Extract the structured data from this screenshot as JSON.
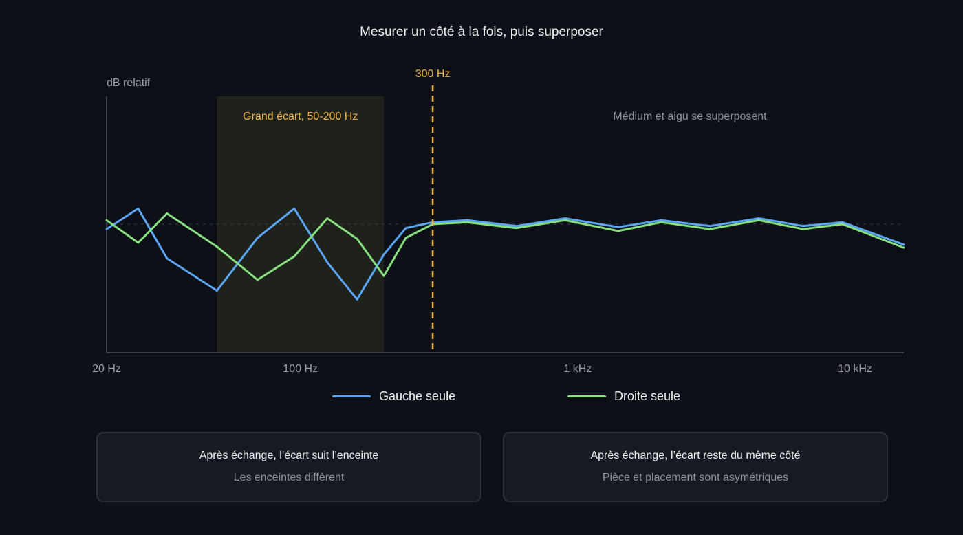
{
  "title": "Mesurer un côté à la fois, puis superposer",
  "chart_data": {
    "type": "line",
    "x_scale": "log",
    "xlim_hz": [
      20,
      15000
    ],
    "ylabel": "dB relatif",
    "x_ticks": [
      {
        "hz": 20,
        "label": "20 Hz"
      },
      {
        "hz": 100,
        "label": "100 Hz"
      },
      {
        "hz": 1000,
        "label": "1 kHz"
      },
      {
        "hz": 10000,
        "label": "10 kHz"
      }
    ],
    "ylim": [
      -14,
      14
    ],
    "reference_level": 0,
    "highlight_band": {
      "from_hz": 50,
      "to_hz": 200,
      "label": "Grand écart, 50-200 Hz"
    },
    "marker": {
      "hz": 300,
      "label": "300 Hz"
    },
    "annotation": "Médium et aigu se superposent",
    "series": [
      {
        "name": "Gauche seule",
        "color": "#5aa5f5",
        "points": [
          [
            20,
            -0.5
          ],
          [
            26,
            1.6
          ],
          [
            33,
            -3.5
          ],
          [
            50,
            -6.8
          ],
          [
            70,
            -1.4
          ],
          [
            95,
            1.6
          ],
          [
            125,
            -3.9
          ],
          [
            160,
            -7.7
          ],
          [
            200,
            -3.1
          ],
          [
            240,
            -0.4
          ],
          [
            300,
            0.2
          ],
          [
            400,
            0.4
          ],
          [
            600,
            -0.2
          ],
          [
            900,
            0.6
          ],
          [
            1400,
            -0.3
          ],
          [
            2000,
            0.4
          ],
          [
            3000,
            -0.2
          ],
          [
            4500,
            0.6
          ],
          [
            6500,
            -0.2
          ],
          [
            9000,
            0.2
          ],
          [
            15000,
            -2.1
          ]
        ]
      },
      {
        "name": "Droite seule",
        "color": "#86e07e",
        "points": [
          [
            20,
            0.4
          ],
          [
            26,
            -1.9
          ],
          [
            33,
            1.1
          ],
          [
            50,
            -2.3
          ],
          [
            70,
            -5.7
          ],
          [
            95,
            -3.3
          ],
          [
            125,
            0.6
          ],
          [
            160,
            -1.5
          ],
          [
            200,
            -5.3
          ],
          [
            240,
            -1.4
          ],
          [
            300,
            0.0
          ],
          [
            400,
            0.2
          ],
          [
            600,
            -0.4
          ],
          [
            900,
            0.4
          ],
          [
            1400,
            -0.7
          ],
          [
            2000,
            0.2
          ],
          [
            3000,
            -0.5
          ],
          [
            4500,
            0.4
          ],
          [
            6500,
            -0.5
          ],
          [
            9000,
            0.0
          ],
          [
            15000,
            -2.4
          ]
        ]
      }
    ]
  },
  "verdicts": [
    {
      "title": "Après échange, l’écart suit l’enceinte",
      "subtitle": "Les enceintes diffèrent"
    },
    {
      "title": "Après échange, l’écart reste du même côté",
      "subtitle": "Pièce et placement sont asymétriques"
    }
  ],
  "colors": {
    "background": "#0d1017",
    "axis": "#3a3f48",
    "label": "#9aa0a8",
    "accent": "#f2b33d",
    "band": "#1f211b"
  }
}
